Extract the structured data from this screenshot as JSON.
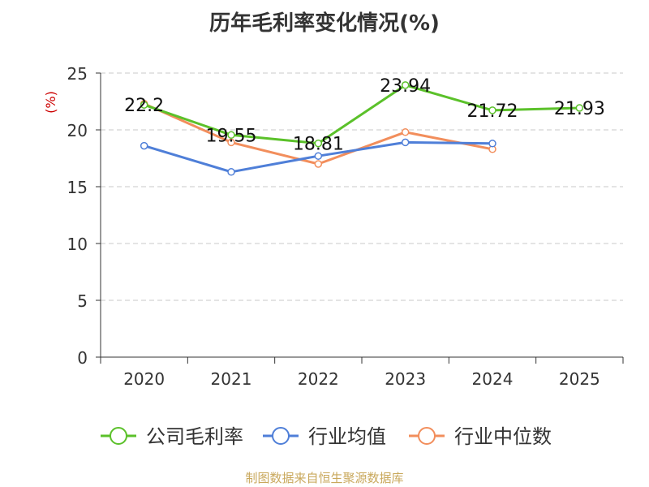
{
  "title": "历年毛利率变化情况(%)",
  "footer": "制图数据来自恒生聚源数据库",
  "chart_data": {
    "type": "line",
    "title": "历年毛利率变化情况(%)",
    "xlabel": "",
    "ylabel": "(%)",
    "ylim": [
      0,
      25
    ],
    "yticks": [
      0,
      5,
      10,
      15,
      20,
      25
    ],
    "categories": [
      "2020",
      "2021",
      "2022",
      "2023",
      "2024",
      "2025"
    ],
    "grid": true,
    "legend_position": "bottom",
    "series": [
      {
        "name": "公司毛利率",
        "color": "#5bc12a",
        "values": [
          22.2,
          19.55,
          18.81,
          23.94,
          21.72,
          21.93
        ],
        "labels": true
      },
      {
        "name": "行业均值",
        "color": "#4f7fd8",
        "values": [
          18.6,
          16.3,
          17.7,
          18.9,
          18.8,
          null
        ],
        "labels": false
      },
      {
        "name": "行业中位数",
        "color": "#f28e5c",
        "values": [
          22.3,
          18.9,
          17.0,
          19.8,
          18.3,
          null
        ],
        "labels": false
      }
    ]
  }
}
